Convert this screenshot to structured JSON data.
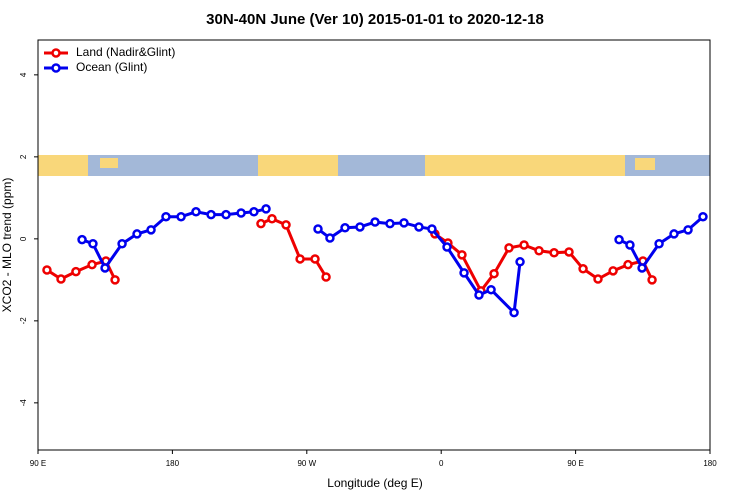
{
  "chart_data": {
    "type": "line",
    "title": "30N-40N June (Ver 10)   2015-01-01 to 2020-12-18",
    "x_label": "Longitude (deg E)",
    "y_label": "XCO2 - MLO trend (ppm)",
    "xlim": [
      90,
      540
    ],
    "ylim": [
      -5.15,
      4.85
    ],
    "xticks": [
      {
        "value": 90,
        "label": "90 E"
      },
      {
        "value": 180,
        "label": "180"
      },
      {
        "value": 270,
        "label": "90 W"
      },
      {
        "value": 360,
        "label": "0"
      },
      {
        "value": 450,
        "label": "90 E"
      },
      {
        "value": 540,
        "label": "180"
      }
    ],
    "yticks": [
      -4,
      -2,
      0,
      2,
      4
    ],
    "legend": "top-left",
    "series": [
      {
        "name": "Land (Nadir&Glint)",
        "color": "#ee0000",
        "x": [
          96,
          105.4,
          115.4,
          126.2,
          135.5,
          141.6,
          null,
          239.3,
          246.7,
          256.1,
          265.5,
          275.5,
          282.9,
          null,
          355.8,
          364.5,
          373.9,
          386.6,
          395.4,
          405.4,
          415.5,
          425.5,
          435.6,
          445.6,
          455,
          465,
          475.1,
          485.1,
          495.1,
          501.2
        ],
        "values": [
          -0.76,
          -0.98,
          -0.8,
          -0.63,
          -0.54,
          -1.0,
          null,
          0.37,
          0.49,
          0.34,
          -0.49,
          -0.49,
          -0.93,
          null,
          0.12,
          -0.1,
          -0.39,
          -1.27,
          -0.85,
          -0.22,
          -0.15,
          -0.29,
          -0.34,
          -0.32,
          -0.73,
          -0.98,
          -0.78,
          -0.63,
          -0.54,
          -1.0
        ]
      },
      {
        "name": "Ocean (Glint)",
        "color": "#0000ee",
        "x": [
          119.5,
          126.8,
          134.9,
          146.3,
          156.3,
          165.7,
          175.7,
          185.8,
          195.8,
          205.9,
          215.9,
          226,
          234.6,
          242.7,
          null,
          277.5,
          285.5,
          295.6,
          305.6,
          315.7,
          325.7,
          335.1,
          345.1,
          353.8,
          363.9,
          375.3,
          385.3,
          393.4,
          408.8,
          412.8,
          null,
          479.1,
          486.4,
          494.5,
          505.9,
          515.9,
          525.3,
          535.3
        ],
        "values": [
          -0.02,
          -0.12,
          -0.71,
          -0.12,
          0.12,
          0.22,
          0.54,
          0.54,
          0.66,
          0.59,
          0.59,
          0.63,
          0.66,
          0.73,
          null,
          0.24,
          0.02,
          0.27,
          0.29,
          0.41,
          0.37,
          0.39,
          0.29,
          0.24,
          -0.2,
          -0.83,
          -1.37,
          -1.24,
          -1.8,
          -0.56,
          null,
          -0.02,
          -0.15,
          -0.71,
          -0.12,
          0.12,
          0.22,
          0.54
        ]
      }
    ]
  }
}
